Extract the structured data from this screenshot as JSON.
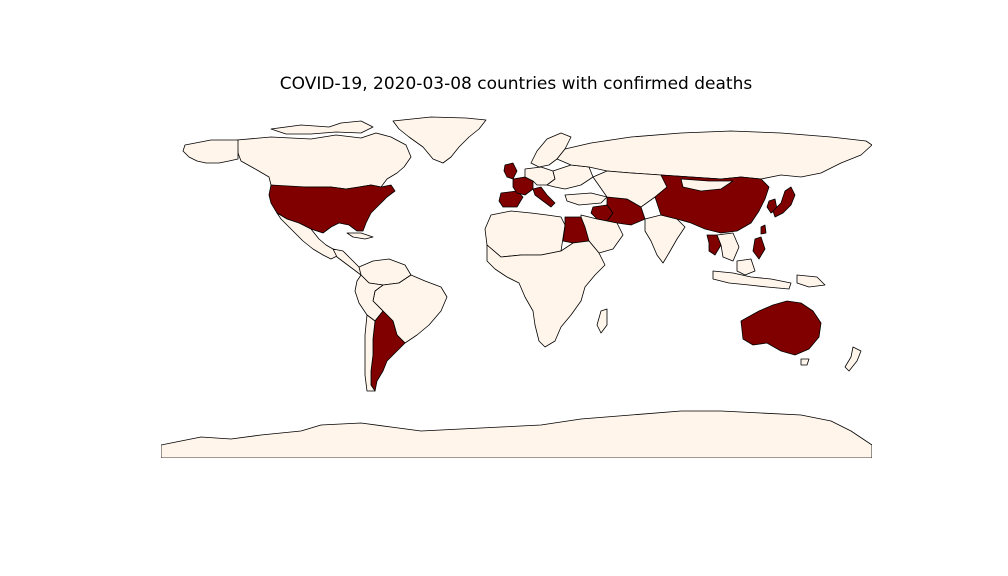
{
  "title": "COVID-19, 2020-03-08 countries with confirmed deaths",
  "legend": {
    "countries_with_deaths_color": "#800000",
    "countries_without_deaths_color": "#fff5eb",
    "border_color": "#000000"
  },
  "map": {
    "projection": "plate-carree",
    "countries_with_confirmed_deaths": [
      "United States",
      "Argentina",
      "France",
      "Spain",
      "United Kingdom",
      "Italy",
      "Switzerland",
      "San Marino",
      "Iran",
      "Iraq",
      "Egypt",
      "China",
      "Hong Kong",
      "Taiwan",
      "South Korea",
      "Japan",
      "Thailand",
      "Philippines",
      "Australia"
    ]
  }
}
